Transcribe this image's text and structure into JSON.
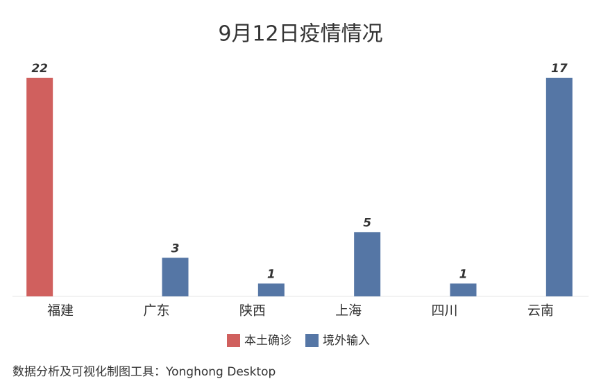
{
  "chart_data": {
    "type": "bar",
    "title": "9月12日疫情情况",
    "categories": [
      "福建",
      "广东",
      "陕西",
      "上海",
      "四川",
      "云南"
    ],
    "series": [
      {
        "name": "本土确诊",
        "color": "#d0605e",
        "values": [
          22,
          null,
          null,
          null,
          null,
          null
        ]
      },
      {
        "name": "境外输入",
        "color": "#5576a5",
        "values": [
          null,
          3,
          1,
          5,
          1,
          17
        ],
        "axis": "y2"
      }
    ],
    "ylim": [
      0,
      22
    ],
    "y2lim": [
      0,
      17
    ],
    "legend": "bottom",
    "source": "数据分析及可视化制图工具：Yonghong Desktop"
  }
}
